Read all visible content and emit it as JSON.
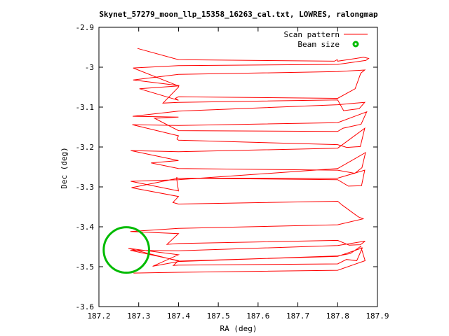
{
  "chart_data": {
    "type": "line",
    "title": "Skynet_57279_moon_llp_15358_16263_cal.txt, LOWRES, ralongmap",
    "xlabel": "RA (deg)",
    "ylabel": "Dec (deg)",
    "xlim": [
      187.2,
      187.9
    ],
    "ylim": [
      -3.6,
      -2.9
    ],
    "xticks": [
      "187.2",
      "187.3",
      "187.4",
      "187.5",
      "187.6",
      "187.7",
      "187.8",
      "187.9"
    ],
    "yticks": [
      "-2.9",
      "-3",
      "-3.1",
      "-3.2",
      "-3.3",
      "-3.4",
      "-3.5",
      "-3.6"
    ],
    "grid": false,
    "legend_position": "top-right",
    "series": [
      {
        "name": "Scan pattern",
        "color": "#ff0000",
        "x": [
          187.297,
          187.4,
          187.792,
          187.799,
          187.8,
          187.865,
          187.878,
          187.871,
          187.8,
          187.4,
          187.286,
          187.4,
          187.302,
          187.4,
          187.392,
          187.4,
          187.8,
          187.844,
          187.858,
          187.868,
          187.8,
          187.4,
          187.286,
          187.401,
          187.4,
          187.361,
          187.4,
          187.8,
          187.815,
          187.854,
          187.868,
          187.8,
          187.4,
          187.285,
          187.4,
          187.34,
          187.4,
          187.8,
          187.813,
          187.859,
          187.873,
          187.8,
          187.4,
          187.284,
          187.4,
          187.396,
          187.4,
          187.8,
          187.823,
          187.857,
          187.868,
          187.8,
          187.4,
          187.28,
          187.4,
          187.331,
          187.4,
          187.8,
          187.843,
          187.861,
          187.87,
          187.8,
          187.4,
          187.28,
          187.4,
          187.395,
          187.4,
          187.8,
          187.827,
          187.86,
          187.868,
          187.8,
          187.4,
          187.282,
          187.4,
          187.386,
          187.4,
          187.8,
          187.812,
          187.852,
          187.864,
          187.8,
          187.4,
          187.279,
          187.4,
          187.371,
          187.4,
          187.8,
          187.829,
          187.857,
          187.869,
          187.8,
          187.4,
          187.279,
          187.4,
          187.387,
          187.4,
          187.8,
          187.822,
          187.848,
          187.862,
          187.8,
          187.4,
          187.274,
          187.4,
          187.335,
          187.4,
          187.8,
          187.832,
          187.858,
          187.869,
          187.8,
          187.4,
          187.287
        ],
        "y": [
          -2.953,
          -2.981,
          -2.985,
          -2.981,
          -2.985,
          -2.975,
          -2.978,
          -2.983,
          -2.993,
          -2.996,
          -3.002,
          -3.047,
          -3.054,
          -3.083,
          -3.078,
          -3.074,
          -3.078,
          -3.054,
          -3.015,
          -3.007,
          -3.011,
          -3.018,
          -3.032,
          -3.046,
          -3.05,
          -3.09,
          -3.088,
          -3.082,
          -3.109,
          -3.104,
          -3.088,
          -3.094,
          -3.11,
          -3.123,
          -3.125,
          -3.128,
          -3.159,
          -3.161,
          -3.153,
          -3.143,
          -3.112,
          -3.139,
          -3.146,
          -3.144,
          -3.172,
          -3.18,
          -3.183,
          -3.194,
          -3.201,
          -3.199,
          -3.153,
          -3.203,
          -3.212,
          -3.209,
          -3.234,
          -3.24,
          -3.254,
          -3.258,
          -3.266,
          -3.252,
          -3.214,
          -3.254,
          -3.282,
          -3.286,
          -3.31,
          -3.277,
          -3.278,
          -3.282,
          -3.298,
          -3.297,
          -3.258,
          -3.278,
          -3.278,
          -3.302,
          -3.324,
          -3.339,
          -3.343,
          -3.336,
          -3.346,
          -3.375,
          -3.38,
          -3.395,
          -3.404,
          -3.412,
          -3.417,
          -3.444,
          -3.442,
          -3.434,
          -3.446,
          -3.445,
          -3.436,
          -3.447,
          -3.46,
          -3.459,
          -3.485,
          -3.497,
          -3.496,
          -3.493,
          -3.482,
          -3.485,
          -3.453,
          -3.474,
          -3.486,
          -3.454,
          -3.47,
          -3.499,
          -3.487,
          -3.473,
          -3.467,
          -3.449,
          -3.485,
          -3.509,
          -3.514,
          -3.516
        ]
      },
      {
        "name": "Beam size",
        "color": "#00bb00",
        "center": [
          187.269,
          -3.458
        ],
        "radius_deg": 0.057
      }
    ]
  }
}
